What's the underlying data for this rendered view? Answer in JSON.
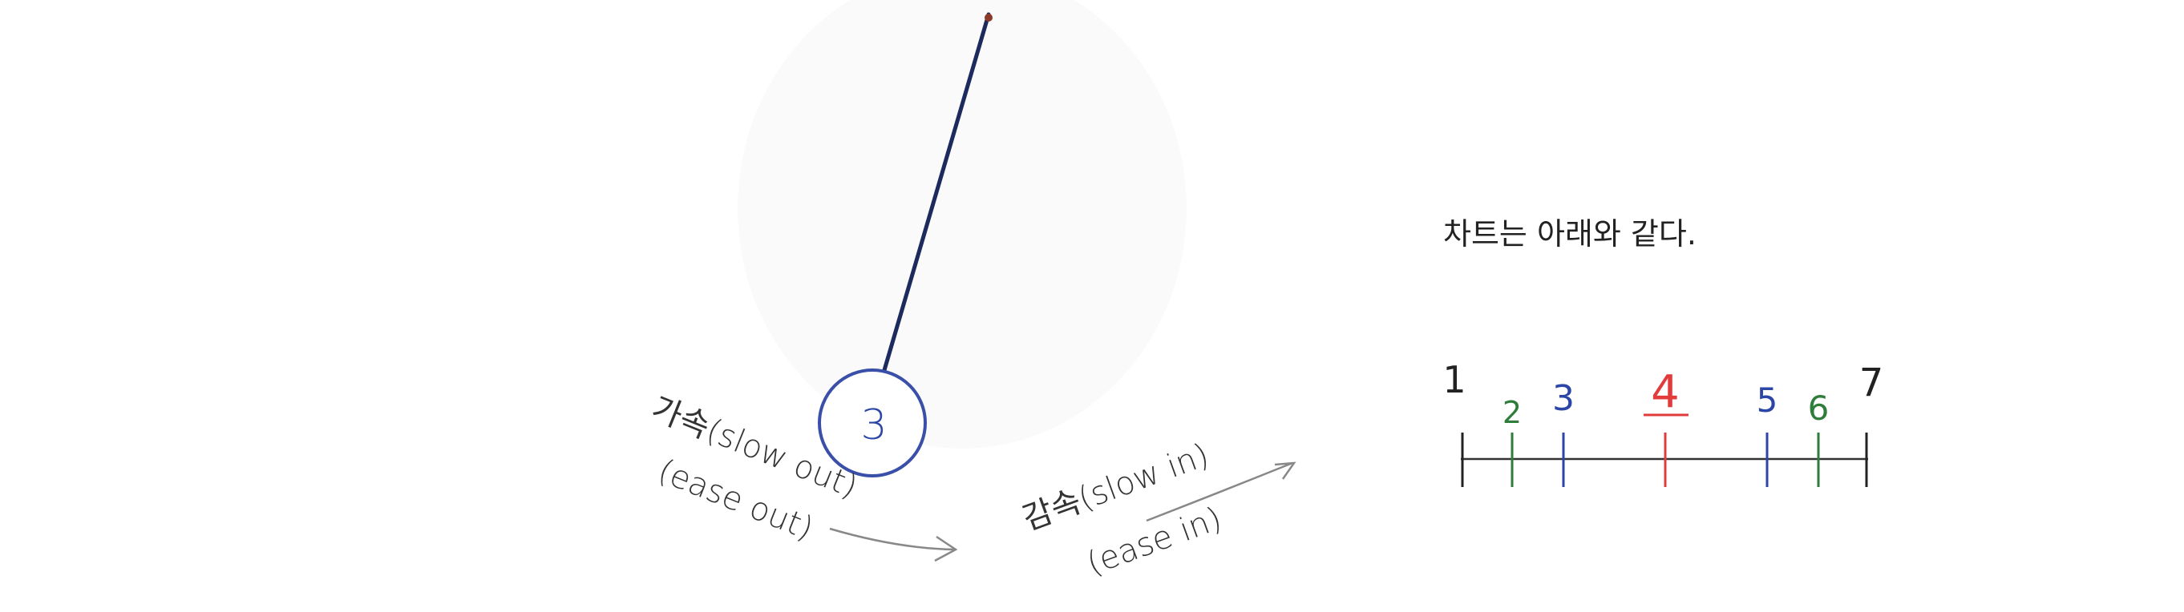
{
  "pendulum": {
    "ball_label": "3"
  },
  "labels": {
    "accel_line1": "가속(slow out)",
    "accel_line2": "(ease out)",
    "decel_line1": "감속(slow in)",
    "decel_line2": "(ease in)"
  },
  "chart": {
    "caption": "차트는 아래와 같다.",
    "ticks": [
      {
        "label": "1",
        "color": "#222222"
      },
      {
        "label": "2",
        "color": "#2e7d3a"
      },
      {
        "label": "3",
        "color": "#2c46a8"
      },
      {
        "label": "4",
        "color": "#e23b3b"
      },
      {
        "label": "5",
        "color": "#2c46a8"
      },
      {
        "label": "6",
        "color": "#2e7d3a"
      },
      {
        "label": "7",
        "color": "#222222"
      }
    ]
  },
  "colors": {
    "rod": "#1c2a5e",
    "ball": "#3a4fa8",
    "ink": "#333333",
    "arrow": "#888888"
  }
}
